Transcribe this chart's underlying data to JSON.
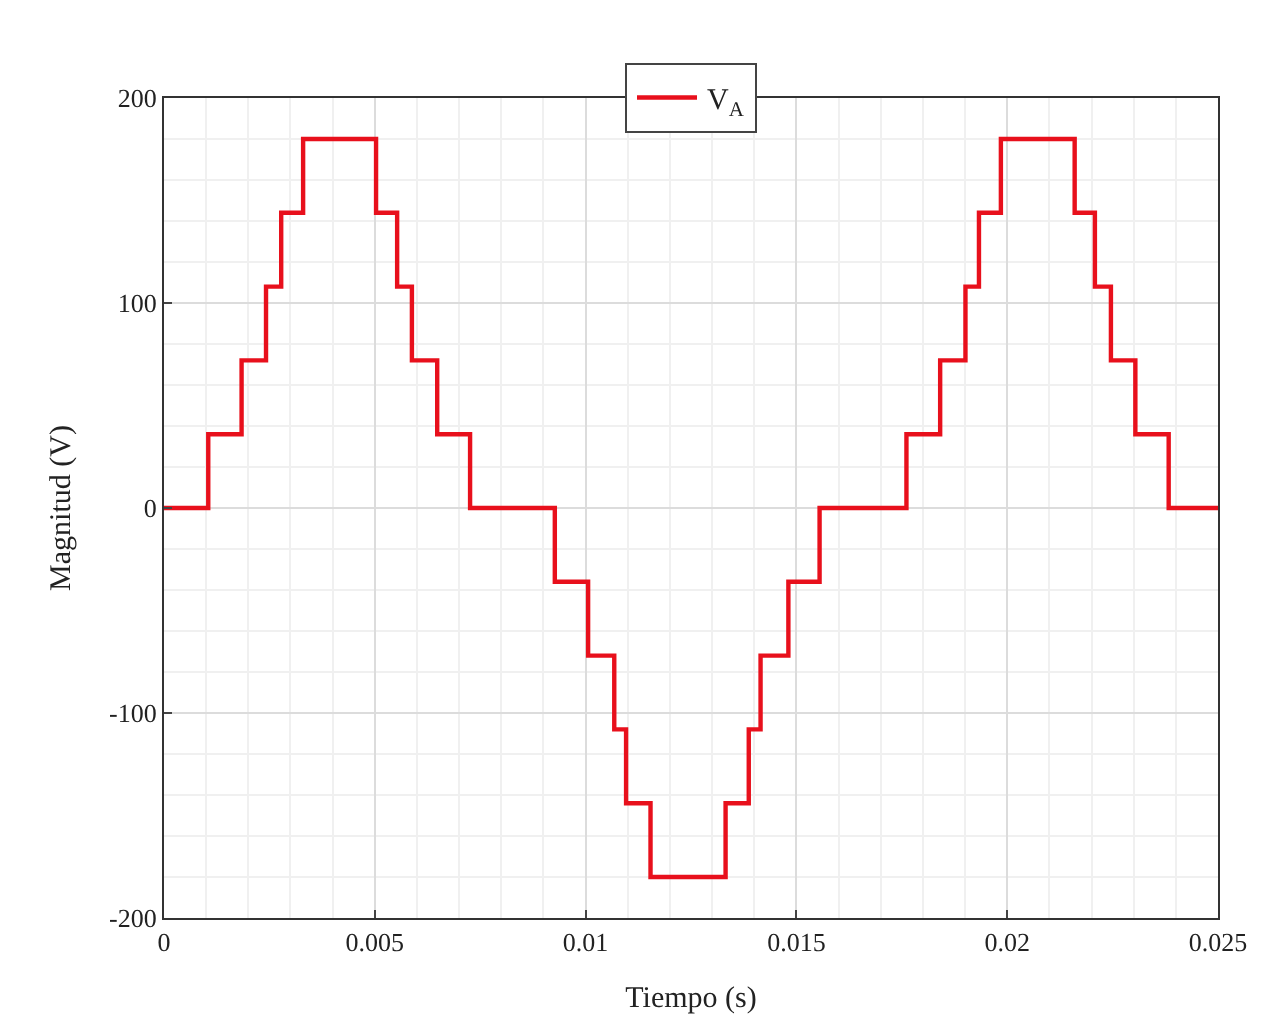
{
  "chart_data": {
    "type": "step",
    "xlabel": "Tiempo (s)",
    "ylabel": "Magnitud (V)",
    "x": [
      0,
      0.00105,
      0.00184,
      0.00242,
      0.00278,
      0.0033,
      0.00503,
      0.00553,
      0.00588,
      0.00648,
      0.00726,
      0.00927,
      0.01006,
      0.01068,
      0.01096,
      0.01154,
      0.01332,
      0.01387,
      0.01415,
      0.01481,
      0.01555,
      0.01761,
      0.01841,
      0.01901,
      0.01933,
      0.01985,
      0.0216,
      0.02208,
      0.02246,
      0.02304,
      0.02383,
      0.025
    ],
    "series": [
      {
        "name": "V$_{A}$",
        "color": "#e8101c",
        "values": [
          0,
          36,
          72,
          108,
          144,
          180,
          144,
          108,
          72,
          36,
          0,
          -36,
          -72,
          -108,
          -144,
          -180,
          -144,
          -108,
          -72,
          -36,
          0,
          36,
          72,
          108,
          144,
          180,
          144,
          108,
          72,
          36,
          0,
          0
        ]
      }
    ],
    "xlim": [
      0,
      0.025
    ],
    "xticks": [
      0,
      0.005,
      0.01,
      0.015,
      0.02,
      0.025
    ],
    "ylim": [
      -200,
      200
    ],
    "yticks": [
      -200,
      -100,
      0,
      100,
      200
    ],
    "grid": true,
    "legend": "top",
    "line_style": "solid",
    "marker": "none"
  }
}
